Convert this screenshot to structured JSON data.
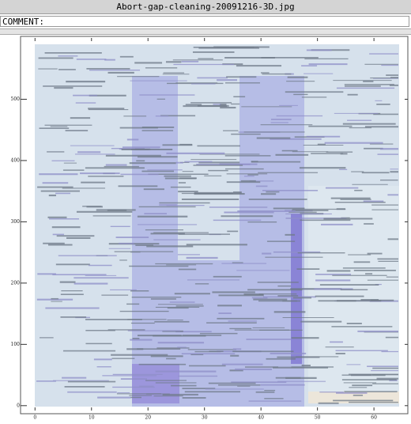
{
  "window": {
    "title": "Abort-gap-cleaning-20091216-3D.jpg",
    "comment_label": "COMMENT:"
  },
  "chart_data": {
    "type": "contour",
    "xlim": [
      -2,
      66
    ],
    "ylim": [
      -8,
      600
    ],
    "xticks": [
      0,
      10,
      20,
      30,
      40,
      50,
      60
    ],
    "yticks": [
      0,
      100,
      200,
      300,
      400,
      500
    ]
  }
}
